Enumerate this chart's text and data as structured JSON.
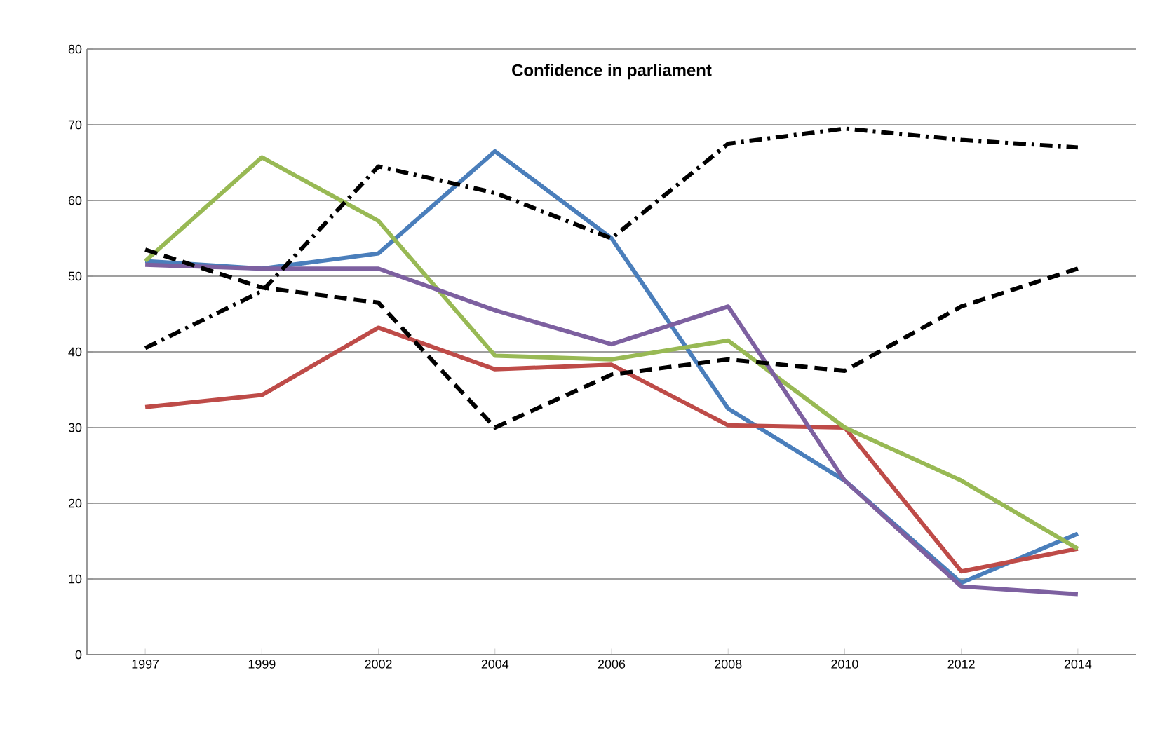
{
  "chart_data": {
    "type": "line",
    "title": "Confidence in parliament",
    "categories": [
      "1997",
      "1999",
      "2002",
      "2004",
      "2006",
      "2008",
      "2010",
      "2012",
      "2014"
    ],
    "series": [
      {
        "color": "#4a7ebb",
        "values": [
          52,
          51,
          53,
          66.5,
          55,
          32.5,
          23,
          9.5,
          16
        ]
      },
      {
        "color": "#be4b48",
        "values": [
          32.7,
          34.3,
          43.2,
          37.7,
          38.3,
          30.3,
          30,
          11,
          14
        ]
      },
      {
        "color": "#98b954",
        "values": [
          52,
          65.7,
          57.3,
          39.5,
          39,
          41.5,
          30,
          23,
          14
        ]
      },
      {
        "color": "#7d60a0",
        "values": [
          51.5,
          51,
          51,
          45.5,
          41,
          46,
          23,
          9,
          8
        ]
      },
      {
        "color": "#000000",
        "line_style": "dashdot",
        "values": [
          40.5,
          48,
          64.5,
          61,
          55,
          67.5,
          69.5,
          68,
          67
        ]
      },
      {
        "color": "#000000",
        "line_style": "dashed",
        "values": [
          53.5,
          48.5,
          46.5,
          30,
          37,
          39,
          37.5,
          46,
          51
        ]
      }
    ],
    "ylim": [
      0,
      80
    ],
    "yticks": [
      0,
      10,
      20,
      30,
      40,
      50,
      60,
      70,
      80
    ],
    "grid": "y",
    "marker": "none",
    "line_style": "solid"
  }
}
